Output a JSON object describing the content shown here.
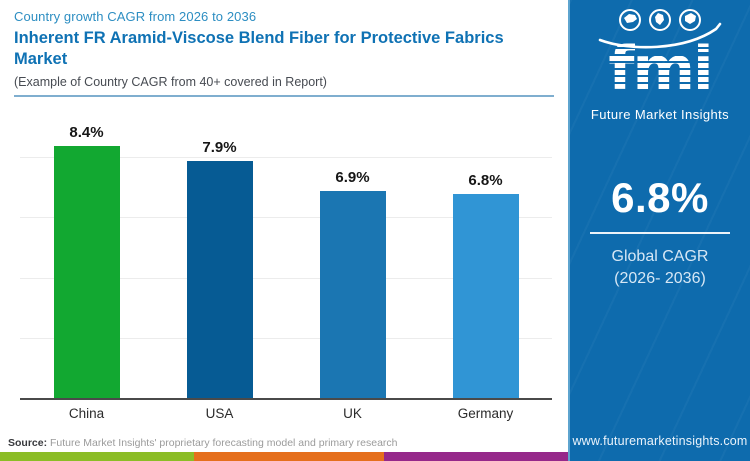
{
  "header": {
    "eyebrow": "Country growth CAGR from 2026 to 2036",
    "title": "Inherent FR Aramid-Viscose Blend Fiber for Protective Fabrics Market",
    "subtitle": "(Example of Country CAGR from 40+ covered in Report)"
  },
  "chart_data": {
    "type": "bar",
    "categories": [
      "China",
      "USA",
      "UK",
      "Germany"
    ],
    "values": [
      8.4,
      7.9,
      6.9,
      6.8
    ],
    "value_labels": [
      "8.4%",
      "7.9%",
      "6.9%",
      "6.8%"
    ],
    "colors": [
      "#12a831",
      "#065b94",
      "#1b76b2",
      "#3095d5"
    ],
    "title": "Inherent FR Aramid-Viscose Blend Fiber for Protective Fabrics Market",
    "xlabel": "",
    "ylabel": "",
    "ylim": [
      0,
      9.5
    ],
    "gridlines": [
      2,
      4,
      6,
      8
    ],
    "grid": "horizontal-only",
    "legend": "none"
  },
  "footer": {
    "source_label": "Source:",
    "source_text": "Future Market Insights' proprietary forecasting model and primary research",
    "stripe_colors": [
      "#8bbd26",
      "#e56f1d",
      "#96288a"
    ]
  },
  "sidebar": {
    "logo_text": "fmi",
    "logo_subtitle": "Future Market Insights",
    "global_cagr_value": "6.8%",
    "global_cagr_label_line1": "Global CAGR",
    "global_cagr_label_line2": "(2026- 2036)",
    "website": "www.futuremarketinsights.com",
    "accent_color": "#0e6bad"
  }
}
